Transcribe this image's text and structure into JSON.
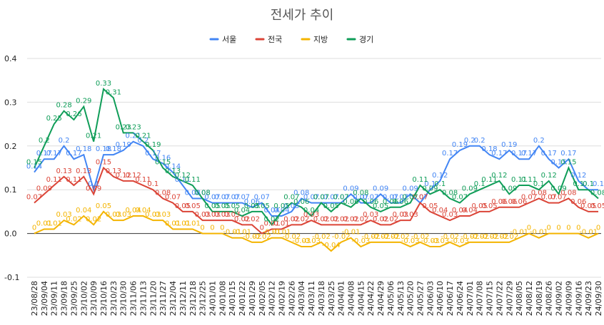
{
  "chart_data": {
    "type": "line",
    "title": "전세가 추이",
    "x": [
      "23/08/28",
      "23/09/04",
      "23/09/11",
      "23/09/18",
      "23/09/25",
      "23/10/02",
      "23/10/09",
      "23/10/16",
      "23/10/23",
      "23/10/30",
      "23/11/06",
      "23/11/13",
      "23/11/20",
      "23/11/27",
      "23/12/04",
      "23/12/11",
      "23/12/18",
      "23/12/25",
      "24/01/01",
      "24/01/08",
      "24/01/15",
      "24/01/22",
      "24/01/29",
      "24/02/05",
      "24/02/12",
      "24/02/19",
      "24/02/26",
      "24/03/04",
      "24/03/11",
      "24/03/18",
      "24/03/25",
      "24/04/01",
      "24/04/08",
      "24/04/15",
      "24/04/22",
      "24/04/29",
      "24/05/06",
      "24/05/13",
      "24/05/20",
      "24/05/27",
      "24/06/03",
      "24/06/10",
      "24/06/17",
      "24/06/24",
      "24/07/01",
      "24/07/08",
      "24/07/15",
      "24/07/22",
      "24/07/29",
      "24/08/05",
      "24/08/12",
      "24/08/19",
      "24/08/26",
      "24/09/02",
      "24/09/09",
      "24/09/16",
      "24/09/23",
      "24/09/30"
    ],
    "series": [
      {
        "name": "서울",
        "color": "#4285f4",
        "values": [
          0.14,
          0.17,
          0.17,
          0.2,
          0.17,
          0.18,
          0.1,
          0.18,
          0.18,
          0.19,
          0.21,
          0.2,
          0.17,
          0.16,
          0.14,
          0.11,
          0.08,
          0.08,
          0.07,
          0.07,
          0.07,
          0.07,
          0.06,
          0.07,
          0.04,
          0.04,
          0.05,
          0.08,
          0.07,
          0.07,
          0.07,
          0.07,
          0.09,
          0.07,
          0.07,
          0.09,
          0.07,
          0.07,
          0.09,
          0.07,
          0.1,
          0.12,
          0.17,
          0.19,
          0.2,
          0.2,
          0.18,
          0.17,
          0.19,
          0.17,
          0.17,
          0.2,
          0.17,
          0.15,
          0.17,
          0.12,
          0.1,
          0.1
        ]
      },
      {
        "name": "전국",
        "color": "#db4437",
        "values": [
          0.07,
          0.09,
          0.11,
          0.13,
          0.11,
          0.13,
          0.09,
          0.15,
          0.13,
          0.12,
          0.12,
          0.11,
          0.1,
          0.08,
          0.07,
          0.05,
          0.05,
          0.03,
          0.03,
          0.03,
          0.03,
          0.02,
          0.02,
          0.0,
          0.01,
          0.01,
          0.02,
          0.02,
          0.03,
          0.02,
          0.02,
          0.02,
          0.02,
          0.02,
          0.03,
          0.02,
          0.02,
          0.03,
          0.03,
          0.07,
          0.05,
          0.04,
          0.03,
          0.04,
          0.04,
          0.05,
          0.05,
          0.06,
          0.06,
          0.06,
          0.07,
          0.08,
          0.07,
          0.07,
          0.08,
          0.06,
          0.05,
          0.05
        ]
      },
      {
        "name": "지방",
        "color": "#f4b400",
        "values": [
          0.0,
          0.01,
          0.01,
          0.03,
          0.02,
          0.04,
          0.02,
          0.05,
          0.03,
          0.03,
          0.04,
          0.04,
          0.03,
          0.03,
          0.01,
          0.01,
          0.01,
          0.0,
          0.0,
          0.0,
          -0.01,
          -0.01,
          -0.02,
          -0.02,
          -0.01,
          -0.01,
          -0.02,
          -0.03,
          -0.03,
          -0.02,
          -0.04,
          -0.02,
          -0.01,
          -0.03,
          -0.02,
          -0.02,
          -0.02,
          -0.02,
          -0.03,
          -0.02,
          -0.03,
          -0.03,
          -0.02,
          -0.03,
          -0.02,
          -0.02,
          -0.02,
          -0.02,
          -0.02,
          -0.01,
          0.0,
          -0.01,
          0.0,
          0.0,
          0.0,
          0.0,
          -0.01,
          0.0
        ]
      },
      {
        "name": "경기",
        "color": "#0f9d58",
        "values": [
          0.15,
          0.2,
          0.25,
          0.28,
          0.26,
          0.29,
          0.21,
          0.33,
          0.31,
          0.23,
          0.23,
          0.21,
          0.19,
          0.15,
          0.13,
          0.12,
          0.11,
          0.08,
          0.05,
          0.05,
          0.05,
          0.04,
          0.05,
          0.05,
          0.02,
          0.05,
          0.07,
          0.06,
          0.04,
          0.07,
          0.05,
          0.07,
          0.06,
          0.08,
          0.06,
          0.05,
          0.06,
          0.06,
          0.07,
          0.11,
          0.09,
          0.1,
          0.08,
          0.07,
          0.09,
          0.1,
          0.11,
          0.12,
          0.09,
          0.11,
          0.11,
          0.1,
          0.12,
          0.09,
          0.15,
          0.1,
          0.1,
          0.08
        ]
      }
    ],
    "ylim": [
      -0.1,
      0.4
    ],
    "yticks": [
      -0.1,
      {
        "value": 0.0,
        "label": "0.0"
      },
      0.1,
      0.2,
      0.3,
      0.4
    ],
    "grid": true,
    "legend": "top"
  }
}
